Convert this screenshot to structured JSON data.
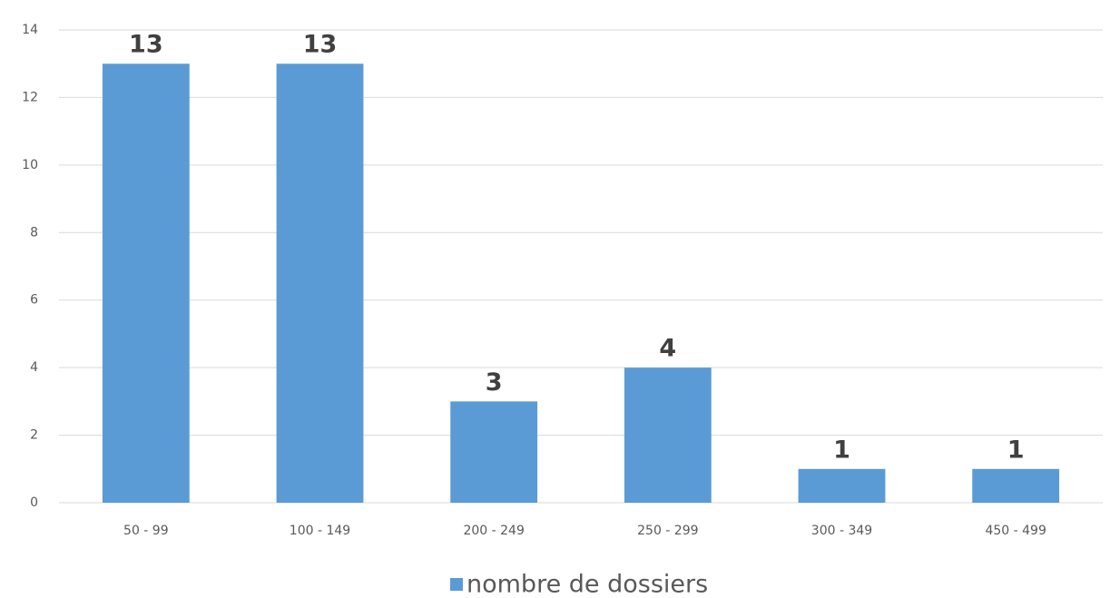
{
  "chart_data": {
    "type": "bar",
    "categories": [
      "50 - 99",
      "100 - 149",
      "200 - 249",
      "250 - 299",
      "300 - 349",
      "450 - 499"
    ],
    "series": [
      {
        "name": "nombre de dossiers",
        "color": "#5b9bd5",
        "values": [
          13,
          13,
          3,
          4,
          1,
          1
        ]
      }
    ],
    "ylim": [
      0,
      14
    ],
    "yticks": [
      0,
      2,
      4,
      6,
      8,
      10,
      12,
      14
    ],
    "grid": true,
    "legend": "bottom"
  }
}
